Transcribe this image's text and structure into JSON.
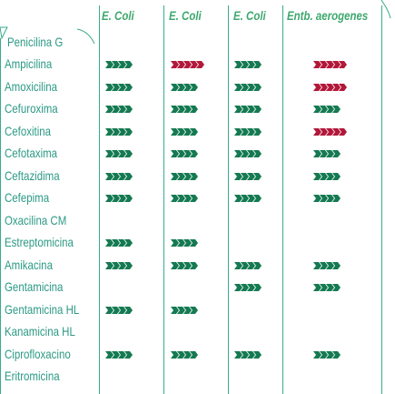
{
  "headers": [
    "E. Coli",
    "E. Coli",
    "E. Coli",
    "Entb. aerogenes"
  ],
  "first_drug": "Penicilina G",
  "colors": {
    "text": "#2c9a86",
    "header": "#3ea86e",
    "grid": "#3aaa8c",
    "mark_green": "#157a52",
    "mark_red": "#b2183a"
  },
  "rows": [
    {
      "drug": "Ampicilina",
      "marks": [
        "green-4",
        "red-5",
        "green-4",
        "red-5"
      ]
    },
    {
      "drug": "Amoxicilina",
      "marks": [
        "green-4",
        "green-4",
        "green-4",
        "red-5"
      ]
    },
    {
      "drug": "Cefuroxima",
      "marks": [
        "green-4",
        "green-4",
        "green-4",
        "green-4"
      ]
    },
    {
      "drug": "Cefoxitina",
      "marks": [
        "green-4",
        "green-4",
        "green-4",
        "red-5"
      ]
    },
    {
      "drug": "Cefotaxima",
      "marks": [
        "green-4",
        "green-4",
        "green-4",
        "green-4"
      ]
    },
    {
      "drug": "Ceftazidima",
      "marks": [
        "green-4",
        "green-4",
        "green-4",
        "green-4"
      ]
    },
    {
      "drug": "Cefepima",
      "marks": [
        "green-4",
        "green-4",
        "green-4",
        "green-4"
      ]
    },
    {
      "drug": "Oxacilina CM",
      "marks": [
        "",
        "",
        "",
        ""
      ]
    },
    {
      "drug": "Estreptomicina",
      "marks": [
        "green-4",
        "green-4",
        "",
        ""
      ]
    },
    {
      "drug": "Amikacina",
      "marks": [
        "green-4",
        "green-4",
        "green-4",
        "green-4"
      ]
    },
    {
      "drug": "Gentamicina",
      "marks": [
        "",
        "",
        "green-4",
        "green-4"
      ]
    },
    {
      "drug": "Gentamicina HL",
      "marks": [
        "green-4",
        "green-4",
        "",
        ""
      ]
    },
    {
      "drug": "Kanamicina HL",
      "marks": [
        "",
        "",
        "",
        ""
      ]
    },
    {
      "drug": "Ciprofloxacino",
      "marks": [
        "green-4",
        "green-4",
        "green-4",
        "green-4"
      ]
    },
    {
      "drug": "Eritromicina",
      "marks": [
        "",
        "",
        "",
        ""
      ]
    }
  ]
}
